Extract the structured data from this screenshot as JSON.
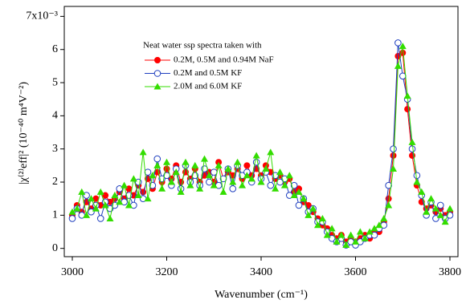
{
  "chart_data": {
    "type": "line",
    "xlabel": "Wavenumber (cm⁻¹)",
    "ylabel": "|χ⁽²⁾eff|² (10⁻⁴⁰ m⁴V⁻²)",
    "legend_title": "Neat water ssp spectra taken with",
    "xlim": [
      2983,
      3817
    ],
    "xticks": [
      3000,
      3200,
      3400,
      3600,
      3800
    ],
    "ylim": [
      -0.25,
      7.3
    ],
    "yticks": [
      0,
      1,
      2,
      3,
      4,
      5,
      6,
      {
        "value": 7,
        "label": "7x10⁻³"
      }
    ],
    "grid": false,
    "x": [
      3000,
      3010,
      3020,
      3030,
      3040,
      3050,
      3060,
      3070,
      3080,
      3090,
      3100,
      3110,
      3120,
      3130,
      3140,
      3150,
      3160,
      3170,
      3180,
      3190,
      3200,
      3210,
      3220,
      3230,
      3240,
      3250,
      3260,
      3270,
      3280,
      3290,
      3300,
      3310,
      3320,
      3330,
      3340,
      3350,
      3360,
      3370,
      3380,
      3390,
      3400,
      3410,
      3420,
      3430,
      3440,
      3450,
      3460,
      3470,
      3480,
      3490,
      3500,
      3510,
      3520,
      3530,
      3540,
      3550,
      3560,
      3570,
      3580,
      3590,
      3600,
      3610,
      3620,
      3630,
      3640,
      3650,
      3660,
      3670,
      3680,
      3690,
      3700,
      3710,
      3720,
      3730,
      3740,
      3750,
      3760,
      3770,
      3780,
      3790,
      3800
    ],
    "series": [
      {
        "name": "0.2M, 0.5M and 0.94M NaF",
        "color": "#ff0000",
        "marker": "circle",
        "values": [
          1.0,
          1.3,
          1.1,
          1.4,
          1.2,
          1.5,
          1.3,
          1.6,
          1.4,
          1.5,
          1.7,
          1.5,
          1.8,
          1.6,
          1.9,
          1.7,
          2.1,
          1.8,
          2.3,
          2.0,
          2.4,
          2.1,
          2.5,
          2.0,
          2.3,
          2.1,
          2.4,
          2.0,
          2.2,
          2.3,
          2.0,
          2.6,
          2.1,
          2.3,
          2.2,
          2.4,
          2.1,
          2.5,
          2.2,
          2.4,
          2.2,
          2.5,
          2.3,
          2.1,
          2.2,
          2.0,
          2.1,
          1.7,
          1.8,
          1.4,
          1.3,
          1.1,
          0.9,
          0.7,
          0.6,
          0.4,
          0.3,
          0.4,
          0.2,
          0.3,
          0.2,
          0.3,
          0.4,
          0.3,
          0.5,
          0.5,
          0.8,
          1.5,
          2.8,
          5.8,
          5.9,
          4.2,
          2.8,
          1.9,
          1.4,
          1.2,
          1.3,
          1.1,
          1.2,
          1.0,
          1.1
        ]
      },
      {
        "name": "0.2M and 0.5M KF",
        "color": "#1f3fbf",
        "marker": "open-circle",
        "values": [
          0.9,
          1.2,
          1.0,
          1.6,
          1.1,
          1.3,
          0.9,
          1.4,
          1.2,
          1.3,
          1.8,
          1.4,
          1.6,
          1.3,
          2.0,
          1.5,
          2.3,
          1.9,
          2.7,
          2.1,
          2.2,
          1.9,
          2.4,
          1.8,
          2.5,
          2.0,
          2.2,
          1.9,
          2.4,
          2.0,
          2.3,
          1.9,
          2.1,
          2.4,
          1.8,
          2.5,
          2.2,
          2.3,
          2.0,
          2.6,
          2.1,
          2.3,
          1.9,
          2.2,
          2.0,
          2.1,
          1.6,
          1.9,
          1.3,
          1.5,
          1.1,
          1.2,
          0.8,
          0.8,
          0.5,
          0.3,
          0.2,
          0.3,
          0.1,
          0.2,
          0.1,
          0.2,
          0.3,
          0.4,
          0.4,
          0.6,
          0.7,
          1.9,
          3.0,
          6.2,
          5.2,
          4.5,
          3.0,
          2.2,
          1.6,
          1.0,
          1.4,
          0.9,
          1.3,
          0.9,
          1.0
        ]
      },
      {
        "name": "2.0M and 6.0M KF",
        "color": "#33dd00",
        "marker": "triangle",
        "values": [
          1.1,
          1.2,
          1.7,
          1.0,
          1.5,
          1.2,
          1.7,
          1.3,
          0.9,
          1.6,
          1.4,
          1.9,
          1.3,
          2.1,
          1.6,
          2.9,
          1.5,
          2.2,
          2.5,
          1.8,
          2.6,
          2.0,
          2.3,
          1.7,
          2.6,
          1.9,
          2.5,
          1.8,
          2.7,
          2.2,
          1.9,
          2.5,
          1.7,
          2.4,
          2.0,
          2.6,
          1.9,
          2.2,
          2.1,
          2.8,
          2.0,
          2.4,
          2.9,
          1.8,
          2.3,
          1.9,
          2.2,
          1.6,
          1.7,
          1.5,
          1.0,
          1.2,
          0.7,
          0.9,
          0.4,
          0.6,
          0.2,
          0.4,
          0.1,
          0.4,
          0.2,
          0.5,
          0.3,
          0.5,
          0.6,
          0.7,
          0.9,
          1.3,
          2.4,
          5.5,
          6.1,
          4.6,
          3.2,
          2.0,
          1.7,
          1.1,
          1.5,
          1.2,
          1.0,
          0.8,
          1.2
        ]
      }
    ]
  }
}
